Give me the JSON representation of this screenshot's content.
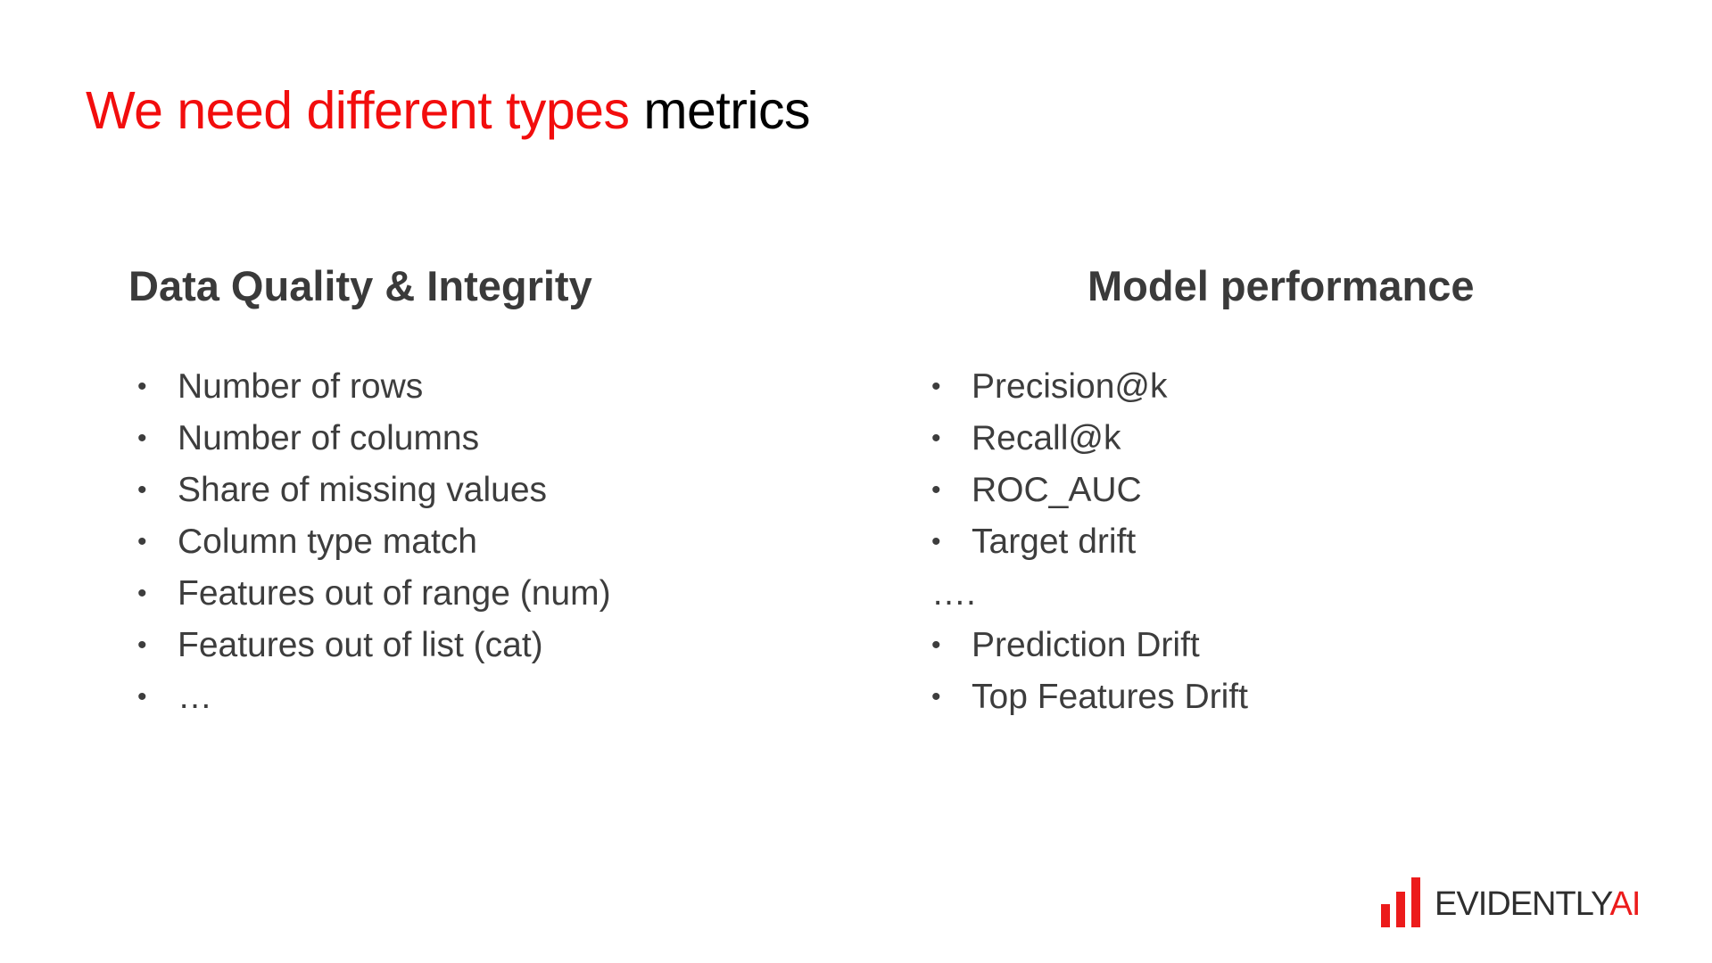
{
  "slide": {
    "title": {
      "part_red": "We need different types",
      "part_black": "metrics"
    },
    "left_column": {
      "heading": "Data Quality & Integrity",
      "items": [
        "Number of rows",
        "Number of columns",
        "Share of missing values",
        "Column type match",
        "Features out of range (num)",
        "Features out of list (cat)",
        "…"
      ]
    },
    "right_column": {
      "heading": "Model performance",
      "items": [
        "Precision@k",
        "Recall@k",
        "ROC_AUC",
        "Target drift",
        "….",
        "Prediction Drift",
        "Top Features Drift"
      ]
    },
    "logo": {
      "name": "EVIDENTLY",
      "suffix": "AI"
    },
    "colors": {
      "accent": "#f20d0d",
      "text": "#3d3d3d"
    }
  }
}
